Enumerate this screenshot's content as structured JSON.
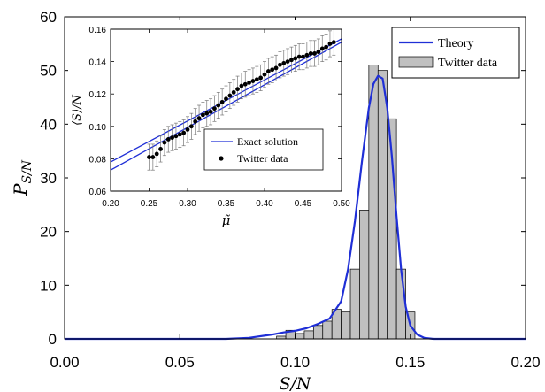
{
  "chart_data": [
    {
      "type": "bar",
      "title": "",
      "xlabel": "S/N",
      "ylabel": "P_{S/N}",
      "xlim": [
        0.0,
        0.2
      ],
      "ylim": [
        0,
        60
      ],
      "x_ticks": [
        "0.00",
        "0.05",
        "0.10",
        "0.15",
        "0.20"
      ],
      "y_ticks": [
        "0",
        "10",
        "20",
        "30",
        "40",
        "50",
        "60"
      ],
      "legend": {
        "placement": "top-right",
        "entries": [
          "Theory",
          "Twitter data"
        ]
      },
      "series": [
        {
          "name": "Twitter data",
          "kind": "histogram",
          "bin_width": 0.004,
          "bin_left": [
            0.092,
            0.096,
            0.1,
            0.104,
            0.108,
            0.112,
            0.116,
            0.12,
            0.124,
            0.128,
            0.132,
            0.136,
            0.14,
            0.144,
            0.148
          ],
          "values": [
            0.5,
            1.6,
            1.0,
            1.5,
            2.5,
            3.3,
            5.5,
            5.0,
            13.0,
            24.0,
            51.0,
            50.0,
            41.0,
            13.0,
            5.0
          ]
        },
        {
          "name": "Theory",
          "kind": "line",
          "color": "#1f2fd6",
          "x": [
            0.0,
            0.07,
            0.08,
            0.09,
            0.095,
            0.1,
            0.105,
            0.11,
            0.115,
            0.12,
            0.123,
            0.126,
            0.129,
            0.132,
            0.134,
            0.136,
            0.138,
            0.14,
            0.142,
            0.144,
            0.146,
            0.148,
            0.15,
            0.153,
            0.156,
            0.16,
            0.2
          ],
          "y": [
            0,
            0,
            0.2,
            0.8,
            1.2,
            1.5,
            2.0,
            2.8,
            3.8,
            7.0,
            13.0,
            22.0,
            33.0,
            43.0,
            47.5,
            49.0,
            48.5,
            43.0,
            34.0,
            23.0,
            13.0,
            6.0,
            2.5,
            0.8,
            0.2,
            0,
            0
          ]
        }
      ]
    },
    {
      "type": "scatter",
      "title": "",
      "xlabel": "μ̃",
      "ylabel": "⟨S⟩/N",
      "xlim": [
        0.2,
        0.5
      ],
      "ylim": [
        0.06,
        0.16
      ],
      "x_ticks": [
        "0.20",
        "0.25",
        "0.30",
        "0.35",
        "0.40",
        "0.45",
        "0.50"
      ],
      "y_ticks": [
        "0.06",
        "0.08",
        "0.10",
        "0.12",
        "0.14",
        "0.16"
      ],
      "legend": {
        "placement": "bottom-right",
        "entries": [
          "Exact solution",
          "Twitter data"
        ]
      },
      "series": [
        {
          "name": "Exact solution",
          "kind": "line",
          "color": "#1f2fd6",
          "x": [
            0.2,
            0.5
          ],
          "y": [
            0.078,
            0.154
          ]
        },
        {
          "name": "Exact solution (lower branch)",
          "kind": "line",
          "color": "#1f2fd6",
          "x": [
            0.2,
            0.5
          ],
          "y": [
            0.073,
            0.152
          ]
        },
        {
          "name": "Twitter data",
          "kind": "scatter",
          "error": 0.008,
          "x": [
            0.25,
            0.255,
            0.26,
            0.265,
            0.27,
            0.275,
            0.28,
            0.285,
            0.29,
            0.295,
            0.3,
            0.305,
            0.31,
            0.315,
            0.32,
            0.325,
            0.33,
            0.335,
            0.34,
            0.345,
            0.35,
            0.355,
            0.36,
            0.365,
            0.37,
            0.375,
            0.38,
            0.385,
            0.39,
            0.395,
            0.4,
            0.405,
            0.41,
            0.415,
            0.42,
            0.425,
            0.43,
            0.435,
            0.44,
            0.445,
            0.45,
            0.455,
            0.46,
            0.465,
            0.47,
            0.475,
            0.48,
            0.485,
            0.49
          ],
          "y": [
            0.081,
            0.081,
            0.083,
            0.086,
            0.09,
            0.092,
            0.093,
            0.094,
            0.095,
            0.096,
            0.098,
            0.1,
            0.103,
            0.105,
            0.107,
            0.108,
            0.109,
            0.111,
            0.113,
            0.115,
            0.117,
            0.119,
            0.121,
            0.123,
            0.125,
            0.126,
            0.127,
            0.128,
            0.129,
            0.13,
            0.132,
            0.134,
            0.135,
            0.136,
            0.138,
            0.139,
            0.14,
            0.141,
            0.142,
            0.143,
            0.143,
            0.144,
            0.145,
            0.145,
            0.146,
            0.148,
            0.149,
            0.151,
            0.152
          ]
        }
      ]
    }
  ]
}
